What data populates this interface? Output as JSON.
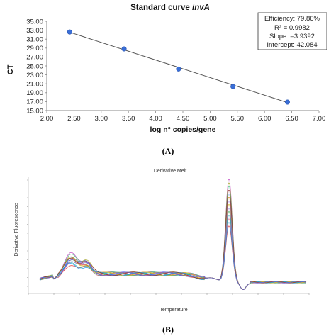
{
  "chart_data": [
    {
      "type": "scatter",
      "panel_label": "(A)",
      "title_plain": "Standard curve ",
      "title_italic": "invA",
      "xlabel": "log n° copies/gene",
      "ylabel": "CT",
      "xlim": [
        2.0,
        7.0
      ],
      "ylim": [
        15.0,
        35.0
      ],
      "x_ticks": [
        "2.00",
        "2.50",
        "3.00",
        "3.50",
        "4.00",
        "4.50",
        "5.00",
        "5.50",
        "6.00",
        "6.50",
        "7.00"
      ],
      "y_ticks": [
        "15.00",
        "17.00",
        "19.00",
        "21.00",
        "23.00",
        "25.00",
        "27.00",
        "29.00",
        "31.00",
        "33.00",
        "35.00"
      ],
      "grid": false,
      "points": [
        {
          "x": 2.42,
          "y": 32.6
        },
        {
          "x": 3.42,
          "y": 28.8
        },
        {
          "x": 4.42,
          "y": 24.3
        },
        {
          "x": 5.42,
          "y": 20.4
        },
        {
          "x": 6.42,
          "y": 16.9
        }
      ],
      "trendline": {
        "slope": -3.9392,
        "intercept": 42.084
      },
      "annotation_box": [
        "Efficiency: 79.86%",
        "R² = 0.9982",
        "Slope: –3.9392",
        "Intercept: 42.084"
      ],
      "colors": {
        "points": "#3a6fd8",
        "trendline": "#555555"
      }
    },
    {
      "type": "line",
      "panel_label": "(B)",
      "title": "Derivative Melt",
      "xlabel": "Temperature",
      "ylabel": "Derivative Fluorescence",
      "series_colors": [
        "#e03030",
        "#3060e0",
        "#20a040",
        "#c040c0",
        "#e08020",
        "#20b0c0",
        "#a0a020",
        "#8050e0",
        "#e06090",
        "#40c080",
        "#d0c020",
        "#2090e0",
        "#903030",
        "#7070d0"
      ]
    }
  ]
}
